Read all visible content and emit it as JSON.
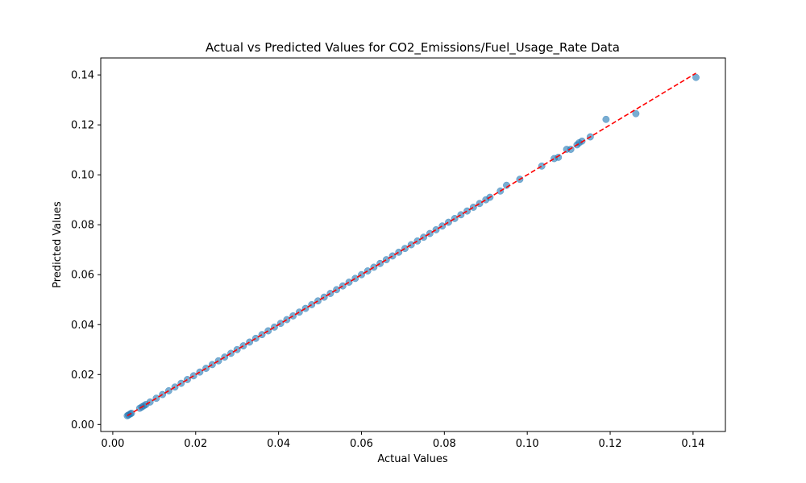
{
  "chart_data": {
    "type": "scatter",
    "title": "Actual vs Predicted Values for CO2_Emissions/Fuel_Usage_Rate Data",
    "xlabel": "Actual Values",
    "ylabel": "Predicted Values",
    "xlim": [
      -0.0029,
      0.1478
    ],
    "ylim": [
      -0.0028,
      0.1468
    ],
    "xticks": [
      0.0,
      0.02,
      0.04,
      0.06,
      0.08,
      0.1,
      0.12,
      0.14
    ],
    "xtick_labels": [
      "0.00",
      "0.02",
      "0.04",
      "0.06",
      "0.08",
      "0.10",
      "0.12",
      "0.14"
    ],
    "yticks": [
      0.0,
      0.02,
      0.04,
      0.06,
      0.08,
      0.1,
      0.12,
      0.14
    ],
    "ytick_labels": [
      "0.00",
      "0.02",
      "0.04",
      "0.06",
      "0.08",
      "0.10",
      "0.12",
      "0.14"
    ],
    "grid": false,
    "series": [
      {
        "color": "#1f77b4",
        "x": [
          0.0035,
          0.0038,
          0.0042,
          0.0045,
          0.0065,
          0.007,
          0.0075,
          0.008,
          0.009,
          0.0105,
          0.012,
          0.0135,
          0.015,
          0.0165,
          0.018,
          0.0195,
          0.021,
          0.0225,
          0.024,
          0.0255,
          0.027,
          0.0285,
          0.03,
          0.0315,
          0.033,
          0.0345,
          0.036,
          0.0375,
          0.039,
          0.0405,
          0.042,
          0.0435,
          0.045,
          0.0465,
          0.048,
          0.0495,
          0.051,
          0.0525,
          0.054,
          0.0555,
          0.057,
          0.0585,
          0.06,
          0.0615,
          0.063,
          0.0645,
          0.066,
          0.0675,
          0.069,
          0.0705,
          0.072,
          0.0735,
          0.075,
          0.0765,
          0.078,
          0.0795,
          0.081,
          0.0825,
          0.084,
          0.0855,
          0.087,
          0.0885,
          0.09,
          0.091,
          0.0935,
          0.095,
          0.0982,
          0.1035,
          0.1065,
          0.1075,
          0.1095,
          0.1105,
          0.112,
          0.1125,
          0.1132,
          0.1152,
          0.119,
          0.1262,
          0.1407
        ],
        "y": [
          0.0035,
          0.0038,
          0.0042,
          0.0045,
          0.0065,
          0.007,
          0.0075,
          0.008,
          0.009,
          0.0105,
          0.012,
          0.0135,
          0.015,
          0.0165,
          0.018,
          0.0195,
          0.021,
          0.0225,
          0.024,
          0.0255,
          0.027,
          0.0285,
          0.03,
          0.0315,
          0.033,
          0.0345,
          0.036,
          0.0375,
          0.039,
          0.0405,
          0.042,
          0.0435,
          0.045,
          0.0465,
          0.048,
          0.0495,
          0.051,
          0.0525,
          0.054,
          0.0555,
          0.057,
          0.0585,
          0.06,
          0.0615,
          0.063,
          0.0645,
          0.066,
          0.0675,
          0.069,
          0.0705,
          0.072,
          0.0735,
          0.075,
          0.0765,
          0.078,
          0.0795,
          0.081,
          0.0825,
          0.084,
          0.0855,
          0.087,
          0.0885,
          0.09,
          0.091,
          0.0935,
          0.0958,
          0.0982,
          0.1035,
          0.1065,
          0.107,
          0.1102,
          0.1102,
          0.112,
          0.1128,
          0.1135,
          0.1152,
          0.1222,
          0.1245,
          0.139
        ]
      }
    ],
    "reference_line": {
      "color": "#ff0000",
      "style": "dashed",
      "from": [
        0.0035,
        0.0035
      ],
      "to": [
        0.1407,
        0.1407
      ]
    }
  }
}
